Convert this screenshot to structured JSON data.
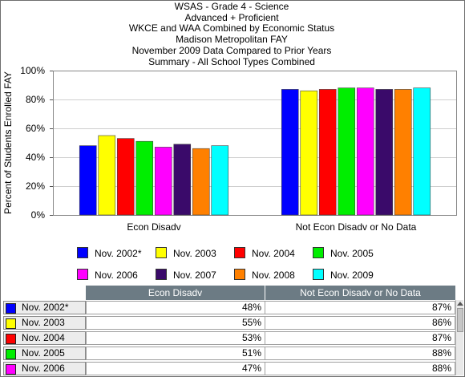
{
  "colors": {
    "plot_border": "#888888",
    "grid": "#cfcfcf",
    "table_header_bg": "#6c7b84"
  },
  "chart_data": {
    "type": "bar",
    "title_lines": [
      "WSAS - Grade 4 - Science",
      "Advanced + Proficient",
      "WKCE and WAA Combined by Economic Status",
      "Madison Metropolitan FAY",
      "November 2009 Data  Compared to Prior Years",
      "Summary - All School Types Combined"
    ],
    "ylabel": "Percent of Students Enrolled FAY",
    "ylim": [
      0,
      100
    ],
    "yticks": [
      "0%",
      "20%",
      "40%",
      "60%",
      "80%",
      "100%"
    ],
    "ytick_values": [
      0,
      20,
      40,
      60,
      80,
      100
    ],
    "grid": true,
    "legend_position": "bottom",
    "categories": [
      "Econ Disadv",
      "Not Econ Disadv or No Data"
    ],
    "series": [
      {
        "name": "Nov. 2002*",
        "color": "#0000ff",
        "values": [
          48,
          87
        ]
      },
      {
        "name": "Nov. 2003",
        "color": "#ffff00",
        "values": [
          55,
          86
        ]
      },
      {
        "name": "Nov. 2004",
        "color": "#ff0000",
        "values": [
          53,
          87
        ]
      },
      {
        "name": "Nov. 2005",
        "color": "#00ee00",
        "values": [
          51,
          88
        ]
      },
      {
        "name": "Nov. 2006",
        "color": "#ff00ff",
        "values": [
          47,
          88
        ]
      },
      {
        "name": "Nov. 2007",
        "color": "#3a0a6a",
        "values": [
          49,
          87
        ]
      },
      {
        "name": "Nov. 2008",
        "color": "#ff8000",
        "values": [
          46,
          87
        ]
      },
      {
        "name": "Nov. 2009",
        "color": "#00ffff",
        "values": [
          48,
          88
        ]
      }
    ]
  },
  "table": {
    "headers": [
      "Econ Disadv",
      "Not Econ Disadv or No Data"
    ],
    "rows": [
      {
        "label": "Nov. 2002*",
        "color": "#0000ff",
        "cells": [
          "48%",
          "87%"
        ]
      },
      {
        "label": "Nov. 2003",
        "color": "#ffff00",
        "cells": [
          "55%",
          "86%"
        ]
      },
      {
        "label": "Nov. 2004",
        "color": "#ff0000",
        "cells": [
          "53%",
          "87%"
        ]
      },
      {
        "label": "Nov. 2005",
        "color": "#00ee00",
        "cells": [
          "51%",
          "88%"
        ]
      },
      {
        "label": "Nov. 2006",
        "color": "#ff00ff",
        "cells": [
          "47%",
          "88%"
        ]
      }
    ]
  }
}
